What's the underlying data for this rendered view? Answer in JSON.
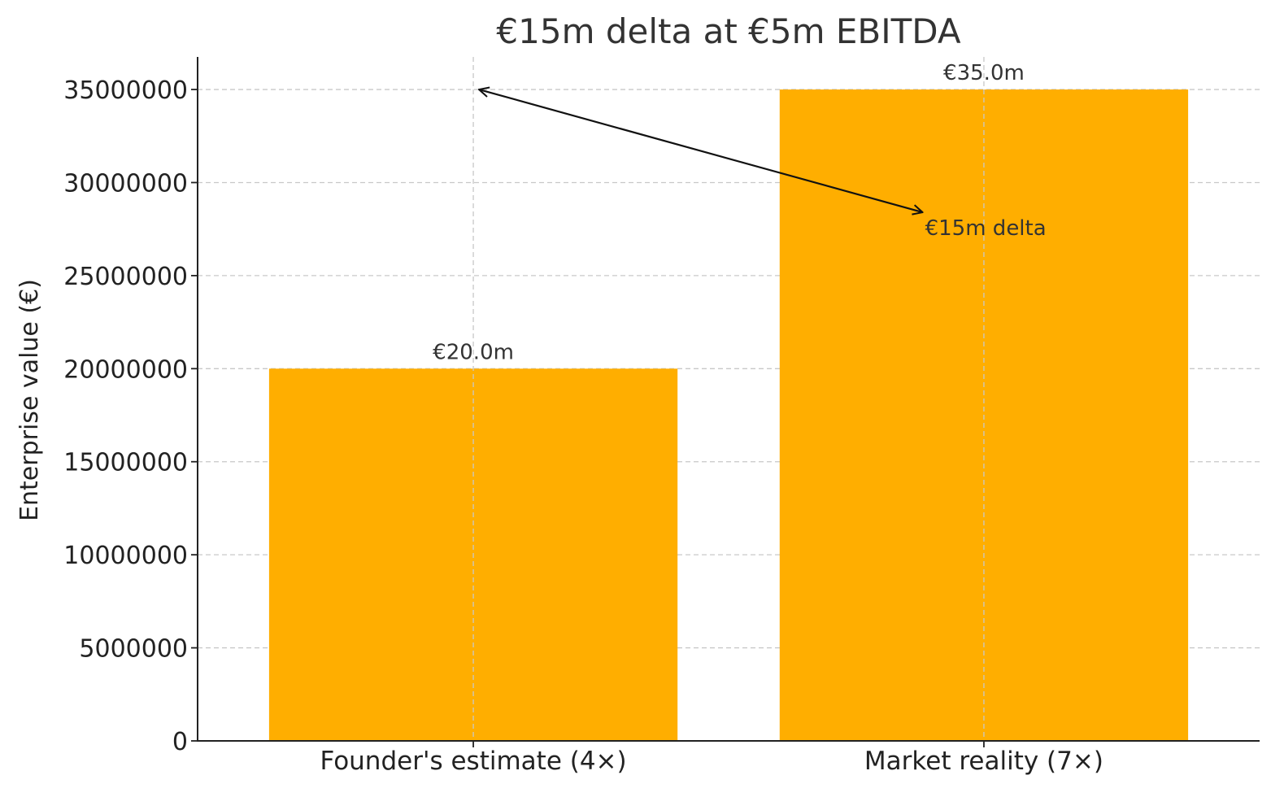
{
  "chart_data": {
    "type": "bar",
    "title": "€15m delta at €5m EBITDA",
    "ylabel": "Enterprise value (€)",
    "xlabel": "",
    "categories": [
      "Founder's estimate (4×)",
      "Market reality (7×)"
    ],
    "values": [
      20000000,
      35000000
    ],
    "data_labels": [
      "€20.0m",
      "€35.0m"
    ],
    "ylim": [
      0,
      36750000
    ],
    "yticks": [
      0,
      5000000,
      10000000,
      15000000,
      20000000,
      25000000,
      30000000,
      35000000
    ],
    "ytick_labels": [
      "0",
      "5000000",
      "10000000",
      "15000000",
      "20000000",
      "25000000",
      "30000000",
      "35000000"
    ],
    "bar_color": "#FFAE00",
    "grid": true,
    "annotation": {
      "text": "€15m delta",
      "arrow_from": {
        "category_index": 0,
        "y": 35000000
      },
      "arrow_to": {
        "x": 0.88,
        "y": 28400000
      }
    }
  }
}
